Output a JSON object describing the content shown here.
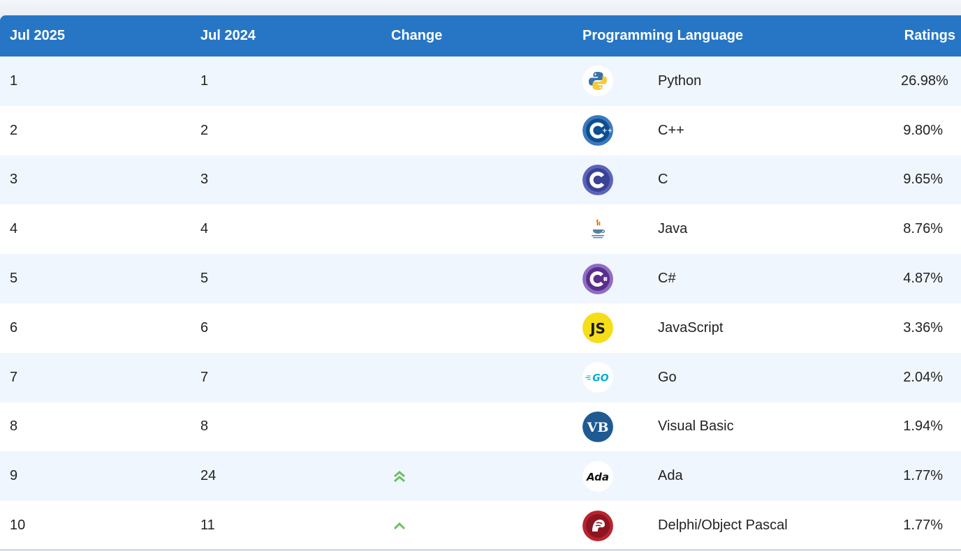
{
  "table": {
    "headers": {
      "current": "Jul 2025",
      "previous": "Jul 2024",
      "change": "Change",
      "language": "Programming Language",
      "ratings": "Ratings"
    },
    "rows": [
      {
        "current": "1",
        "previous": "1",
        "change": "none",
        "icon": "python-logo-icon",
        "language": "Python",
        "rating": "26.98%"
      },
      {
        "current": "2",
        "previous": "2",
        "change": "none",
        "icon": "cpp-logo-icon",
        "language": "C++",
        "rating": "9.80%"
      },
      {
        "current": "3",
        "previous": "3",
        "change": "none",
        "icon": "c-logo-icon",
        "language": "C",
        "rating": "9.65%"
      },
      {
        "current": "4",
        "previous": "4",
        "change": "none",
        "icon": "java-logo-icon",
        "language": "Java",
        "rating": "8.76%"
      },
      {
        "current": "5",
        "previous": "5",
        "change": "none",
        "icon": "csharp-logo-icon",
        "language": "C#",
        "rating": "4.87%"
      },
      {
        "current": "6",
        "previous": "6",
        "change": "none",
        "icon": "javascript-logo-icon",
        "language": "JavaScript",
        "rating": "3.36%"
      },
      {
        "current": "7",
        "previous": "7",
        "change": "none",
        "icon": "go-logo-icon",
        "language": "Go",
        "rating": "2.04%"
      },
      {
        "current": "8",
        "previous": "8",
        "change": "none",
        "icon": "visual-basic-logo-icon",
        "language": "Visual Basic",
        "rating": "1.94%"
      },
      {
        "current": "9",
        "previous": "24",
        "change": "double-up",
        "icon": "ada-logo-icon",
        "language": "Ada",
        "rating": "1.77%"
      },
      {
        "current": "10",
        "previous": "11",
        "change": "single-up",
        "icon": "delphi-logo-icon",
        "language": "Delphi/Object Pascal",
        "rating": "1.77%"
      }
    ]
  },
  "icon_text": {
    "js": "JS",
    "vb": "VB",
    "go": "GO",
    "ada": "Ada"
  },
  "colors": {
    "header_bg": "#2776c5",
    "row_alt": "#f0f6fd",
    "change_up": "#6cc05f"
  }
}
